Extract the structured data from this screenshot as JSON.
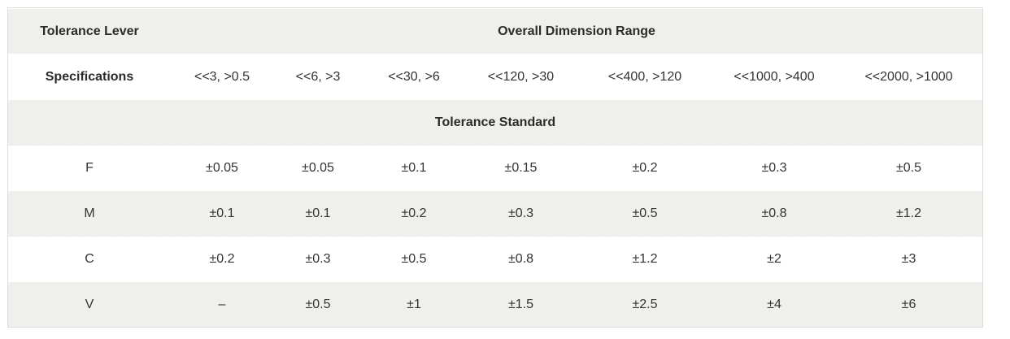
{
  "table": {
    "header": {
      "label": "Tolerance Lever",
      "range_title": "Overall Dimension Range"
    },
    "specifications": {
      "label": "Specifications",
      "ranges": [
        "<<3, >0.5",
        "<<6, >3",
        "<<30, >6",
        "<<120, >30",
        "<<400, >120",
        "<<1000, >400",
        "<<2000, >1000"
      ]
    },
    "standard_title": "Tolerance Standard",
    "rows": [
      {
        "level": "F",
        "values": [
          "±0.05",
          "±0.05",
          "±0.1",
          "±0.15",
          "±0.2",
          "±0.3",
          "±0.5"
        ]
      },
      {
        "level": "M",
        "values": [
          "±0.1",
          "±0.1",
          "±0.2",
          "±0.3",
          "±0.5",
          "±0.8",
          "±1.2"
        ]
      },
      {
        "level": "C",
        "values": [
          "±0.2",
          "±0.3",
          "±0.5",
          "±0.8",
          "±1.2",
          "±2",
          "±3"
        ]
      },
      {
        "level": "V",
        "values": [
          "–",
          "±0.5",
          "±1",
          "±1.5",
          "±2.5",
          "±4",
          "±6"
        ]
      }
    ]
  }
}
